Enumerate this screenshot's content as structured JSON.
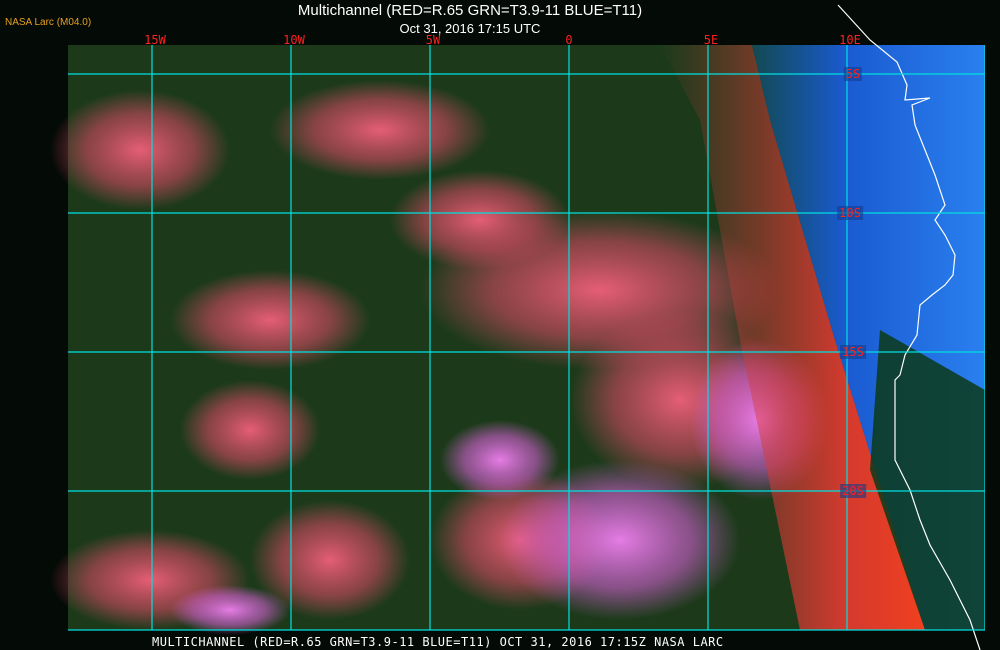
{
  "header": {
    "title": "Multichannel (RED=R.65 GRN=T3.9-11 BLUE=T11)",
    "datetime": "Oct 31, 2016 17:15 UTC",
    "brand": "NASA Larc (M04.0)"
  },
  "map": {
    "longitude_labels": [
      "15W",
      "10W",
      "5W",
      "0",
      "5E",
      "10E"
    ],
    "latitude_labels": [
      "5S",
      "10S",
      "15S",
      "20S"
    ],
    "grid_color": "#00e0e0",
    "label_color": "#ff2020",
    "coastline_color": "#ffffff",
    "colors": {
      "ocean_clear": "#0e3a12",
      "cloud": "#e8506a",
      "sunglint_edge": "#f03020",
      "land": "#1a60e0",
      "high_cloud": "#e070e0"
    }
  },
  "footer": {
    "caption": "MULTICHANNEL (RED=R.65 GRN=T3.9-11 BLUE=T11) OCT 31, 2016 17:15Z   NASA LARC"
  }
}
